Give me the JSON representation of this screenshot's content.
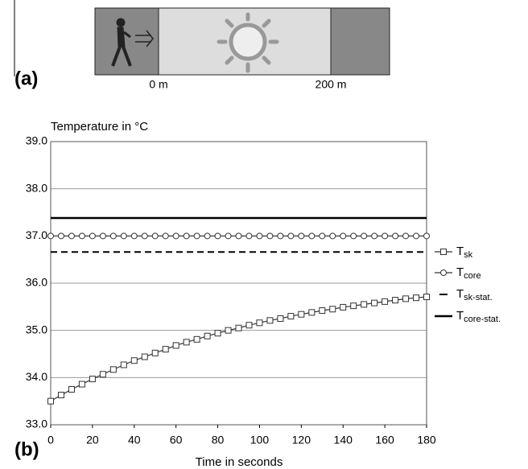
{
  "panel_a": {
    "label": "(a)",
    "markers": [
      "0 m",
      "200 m"
    ]
  },
  "chart_data": {
    "type": "line",
    "panel_label": "(b)",
    "title": "Temperature in °C",
    "x_label": "Time in seconds",
    "x": [
      0,
      5,
      10,
      15,
      20,
      25,
      30,
      35,
      40,
      45,
      50,
      55,
      60,
      65,
      70,
      75,
      80,
      85,
      90,
      95,
      100,
      105,
      110,
      115,
      120,
      125,
      130,
      135,
      140,
      145,
      150,
      155,
      160,
      165,
      170,
      175,
      180
    ],
    "series": [
      {
        "name": "Tsk",
        "color": "#333333",
        "marker": "square",
        "width": 1.2,
        "values": [
          33.5,
          33.63,
          33.75,
          33.86,
          33.97,
          34.07,
          34.17,
          34.27,
          34.36,
          34.44,
          34.52,
          34.6,
          34.68,
          34.75,
          34.81,
          34.88,
          34.94,
          35.0,
          35.05,
          35.11,
          35.16,
          35.21,
          35.25,
          35.3,
          35.34,
          35.38,
          35.42,
          35.45,
          35.49,
          35.52,
          35.55,
          35.58,
          35.61,
          35.64,
          35.67,
          35.69,
          35.71
        ]
      },
      {
        "name": "Tcore",
        "color": "#333333",
        "marker": "circle",
        "width": 1.2,
        "values": [
          37.0,
          37.0,
          37.0,
          37.0,
          37.0,
          37.0,
          37.0,
          37.0,
          37.0,
          37.0,
          37.0,
          37.0,
          37.0,
          37.0,
          37.0,
          37.0,
          37.0,
          37.0,
          37.0,
          37.0,
          37.0,
          37.0,
          37.0,
          37.0,
          37.0,
          37.0,
          37.0,
          37.0,
          37.0,
          37.0,
          37.0,
          37.0,
          37.0,
          37.0,
          37.0,
          37.0,
          37.0
        ]
      },
      {
        "name": "Tsk-stat.",
        "color": "#000000",
        "marker": "none",
        "dash": true,
        "width": 2,
        "x": [
          0,
          180
        ],
        "values": [
          36.66,
          36.66
        ]
      },
      {
        "name": "Tcore-stat.",
        "color": "#000000",
        "marker": "none",
        "width": 2.5,
        "x": [
          0,
          180
        ],
        "values": [
          37.38,
          37.38
        ]
      }
    ],
    "xlim": [
      0,
      180
    ],
    "xticks": [
      0,
      20,
      40,
      60,
      80,
      100,
      120,
      140,
      160,
      180
    ],
    "ylim": [
      33,
      39
    ],
    "yticks": [
      {
        "value": 33,
        "label": "33.0"
      },
      {
        "value": 34,
        "label": "34.0"
      },
      {
        "value": 35,
        "label": "35.0"
      },
      {
        "value": 36,
        "label": "36.0"
      },
      {
        "value": 37,
        "label": "37.0"
      },
      {
        "value": 38,
        "label": "38.0"
      },
      {
        "value": 39,
        "label": "39.0"
      }
    ],
    "grid": true,
    "legend": "right"
  }
}
